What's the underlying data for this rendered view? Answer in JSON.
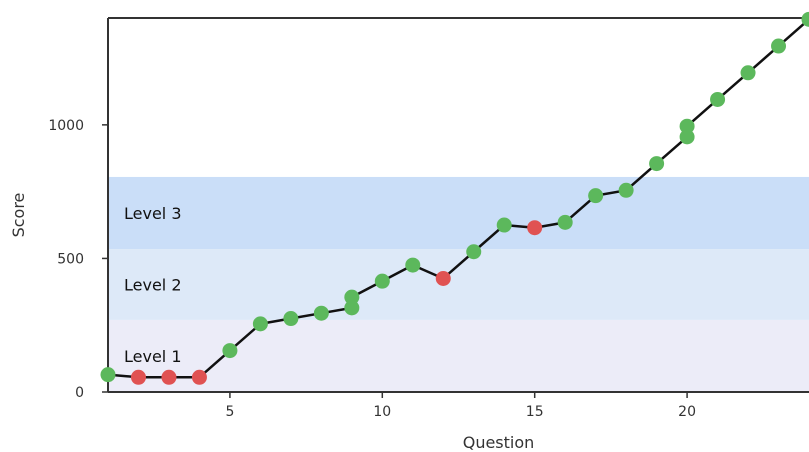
{
  "chart_data": {
    "type": "line",
    "xlabel": "Question",
    "ylabel": "Score",
    "xlim": [
      1,
      24
    ],
    "ylim": [
      0,
      1400
    ],
    "x_ticks": [
      5,
      10,
      15,
      20
    ],
    "y_ticks": [
      0,
      500,
      1000
    ],
    "grid": false,
    "colors": {
      "line": "#111111",
      "correct": "#5cb85c",
      "incorrect": "#e05252",
      "axis": "#333333"
    },
    "bands": [
      {
        "label": "Level 1",
        "from": 0,
        "to": 270,
        "color": "#ececf8"
      },
      {
        "label": "Level 2",
        "from": 270,
        "to": 535,
        "color": "#dde9f8"
      },
      {
        "label": "Level 3",
        "from": 535,
        "to": 805,
        "color": "#cadef8"
      }
    ],
    "points": [
      {
        "x": 1,
        "y": 65,
        "status": "correct"
      },
      {
        "x": 2,
        "y": 55,
        "status": "incorrect"
      },
      {
        "x": 3,
        "y": 55,
        "status": "incorrect"
      },
      {
        "x": 4,
        "y": 55,
        "status": "incorrect"
      },
      {
        "x": 5,
        "y": 155,
        "status": "correct"
      },
      {
        "x": 6,
        "y": 255,
        "status": "correct"
      },
      {
        "x": 7,
        "y": 275,
        "status": "correct"
      },
      {
        "x": 8,
        "y": 295,
        "status": "correct"
      },
      {
        "x": 9,
        "y": 315,
        "status": "correct"
      },
      {
        "x": 9,
        "y": 355,
        "status": "correct"
      },
      {
        "x": 10,
        "y": 415,
        "status": "correct"
      },
      {
        "x": 11,
        "y": 475,
        "status": "correct"
      },
      {
        "x": 12,
        "y": 425,
        "status": "incorrect"
      },
      {
        "x": 13,
        "y": 525,
        "status": "correct"
      },
      {
        "x": 14,
        "y": 625,
        "status": "correct"
      },
      {
        "x": 15,
        "y": 615,
        "status": "incorrect"
      },
      {
        "x": 16,
        "y": 635,
        "status": "correct"
      },
      {
        "x": 17,
        "y": 735,
        "status": "correct"
      },
      {
        "x": 18,
        "y": 755,
        "status": "correct"
      },
      {
        "x": 19,
        "y": 855,
        "status": "correct"
      },
      {
        "x": 20,
        "y": 955,
        "status": "correct"
      },
      {
        "x": 20,
        "y": 995,
        "status": "correct"
      },
      {
        "x": 21,
        "y": 1095,
        "status": "correct"
      },
      {
        "x": 22,
        "y": 1195,
        "status": "correct"
      },
      {
        "x": 23,
        "y": 1295,
        "status": "correct"
      },
      {
        "x": 24,
        "y": 1395,
        "status": "correct"
      }
    ]
  }
}
